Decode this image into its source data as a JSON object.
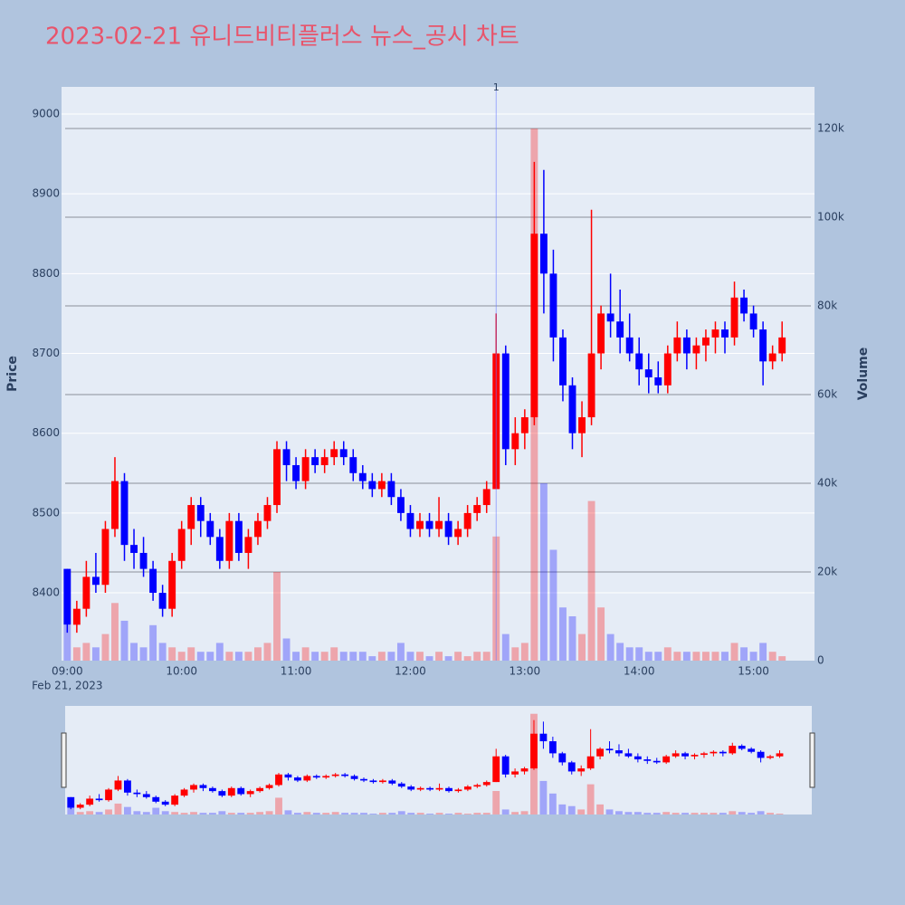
{
  "chart_data": {
    "type": "candlestick",
    "title": "2023-02-21 유니드비티플러스 뉴스_공시 차트",
    "y_label": "Price",
    "y2_label": "Volume",
    "increasing_color": "#ff0000",
    "decreasing_color": "#0000ff",
    "x": [
      "2023-02-21 09:00",
      "2023-02-21 09:05",
      "2023-02-21 09:10",
      "2023-02-21 09:15",
      "2023-02-21 09:20",
      "2023-02-21 09:25",
      "2023-02-21 09:30",
      "2023-02-21 09:35",
      "2023-02-21 09:40",
      "2023-02-21 09:45",
      "2023-02-21 09:50",
      "2023-02-21 09:55",
      "2023-02-21 10:00",
      "2023-02-21 10:05",
      "2023-02-21 10:10",
      "2023-02-21 10:15",
      "2023-02-21 10:20",
      "2023-02-21 10:25",
      "2023-02-21 10:30",
      "2023-02-21 10:35",
      "2023-02-21 10:40",
      "2023-02-21 10:45",
      "2023-02-21 10:50",
      "2023-02-21 10:55",
      "2023-02-21 11:00",
      "2023-02-21 11:05",
      "2023-02-21 11:10",
      "2023-02-21 11:15",
      "2023-02-21 11:20",
      "2023-02-21 11:25",
      "2023-02-21 11:30",
      "2023-02-21 11:35",
      "2023-02-21 11:40",
      "2023-02-21 11:45",
      "2023-02-21 11:50",
      "2023-02-21 11:55",
      "2023-02-21 12:00",
      "2023-02-21 12:05",
      "2023-02-21 12:10",
      "2023-02-21 12:15",
      "2023-02-21 12:20",
      "2023-02-21 12:25",
      "2023-02-21 12:30",
      "2023-02-21 12:35",
      "2023-02-21 12:40",
      "2023-02-21 12:45",
      "2023-02-21 12:50",
      "2023-02-21 12:55",
      "2023-02-21 13:00",
      "2023-02-21 13:05",
      "2023-02-21 13:10",
      "2023-02-21 13:15",
      "2023-02-21 13:20",
      "2023-02-21 13:25",
      "2023-02-21 13:30",
      "2023-02-21 13:35",
      "2023-02-21 13:40",
      "2023-02-21 13:45",
      "2023-02-21 13:50",
      "2023-02-21 13:55",
      "2023-02-21 14:00",
      "2023-02-21 14:05",
      "2023-02-21 14:10",
      "2023-02-21 14:15",
      "2023-02-21 14:20",
      "2023-02-21 14:25",
      "2023-02-21 14:30",
      "2023-02-21 14:35",
      "2023-02-21 14:40",
      "2023-02-21 14:45",
      "2023-02-21 14:50",
      "2023-02-21 14:55",
      "2023-02-21 15:00",
      "2023-02-21 15:05",
      "2023-02-21 15:10",
      "2023-02-21 15:15"
    ],
    "open": [
      8430,
      8360,
      8380,
      8420,
      8410,
      8480,
      8540,
      8460,
      8450,
      8430,
      8400,
      8380,
      8440,
      8480,
      8510,
      8490,
      8470,
      8440,
      8490,
      8450,
      8470,
      8490,
      8510,
      8580,
      8560,
      8540,
      8570,
      8560,
      8570,
      8580,
      8570,
      8550,
      8540,
      8530,
      8540,
      8520,
      8500,
      8480,
      8490,
      8480,
      8490,
      8470,
      8480,
      8500,
      8510,
      8530,
      8700,
      8580,
      8600,
      8620,
      8850,
      8800,
      8720,
      8660,
      8600,
      8620,
      8700,
      8750,
      8740,
      8720,
      8700,
      8680,
      8670,
      8660,
      8700,
      8720,
      8700,
      8710,
      8720,
      8730,
      8720,
      8770,
      8750,
      8730,
      8690,
      8700
    ],
    "high": [
      8430,
      8390,
      8440,
      8450,
      8490,
      8570,
      8550,
      8480,
      8470,
      8440,
      8410,
      8450,
      8490,
      8520,
      8520,
      8500,
      8480,
      8500,
      8500,
      8480,
      8500,
      8520,
      8590,
      8590,
      8570,
      8580,
      8580,
      8580,
      8590,
      8590,
      8580,
      8560,
      8550,
      8550,
      8550,
      8530,
      8510,
      8500,
      8500,
      8520,
      8500,
      8490,
      8510,
      8520,
      8540,
      8750,
      8710,
      8620,
      8630,
      8940,
      8930,
      8830,
      8730,
      8670,
      8640,
      8880,
      8760,
      8800,
      8780,
      8750,
      8720,
      8700,
      8690,
      8710,
      8740,
      8730,
      8720,
      8730,
      8740,
      8740,
      8790,
      8780,
      8760,
      8740,
      8710,
      8740
    ],
    "low": [
      8350,
      8350,
      8370,
      8400,
      8400,
      8470,
      8440,
      8430,
      8420,
      8390,
      8370,
      8370,
      8430,
      8460,
      8470,
      8460,
      8430,
      8430,
      8440,
      8430,
      8460,
      8480,
      8500,
      8540,
      8530,
      8530,
      8550,
      8550,
      8560,
      8560,
      8540,
      8530,
      8520,
      8520,
      8510,
      8490,
      8470,
      8470,
      8470,
      8470,
      8460,
      8460,
      8470,
      8490,
      8500,
      8530,
      8560,
      8560,
      8580,
      8610,
      8750,
      8690,
      8640,
      8580,
      8570,
      8610,
      8680,
      8720,
      8700,
      8690,
      8660,
      8650,
      8650,
      8650,
      8690,
      8680,
      8680,
      8690,
      8700,
      8700,
      8710,
      8740,
      8720,
      8660,
      8680,
      8690
    ],
    "close": [
      8360,
      8380,
      8420,
      8410,
      8480,
      8540,
      8460,
      8450,
      8430,
      8400,
      8380,
      8440,
      8480,
      8510,
      8490,
      8470,
      8440,
      8490,
      8450,
      8470,
      8490,
      8510,
      8580,
      8560,
      8540,
      8570,
      8560,
      8570,
      8580,
      8570,
      8550,
      8540,
      8530,
      8540,
      8520,
      8500,
      8480,
      8490,
      8480,
      8490,
      8470,
      8480,
      8500,
      8510,
      8530,
      8700,
      8580,
      8600,
      8620,
      8850,
      8800,
      8720,
      8660,
      8600,
      8620,
      8700,
      8750,
      8740,
      8720,
      8700,
      8680,
      8670,
      8660,
      8700,
      8720,
      8700,
      8710,
      8720,
      8730,
      8720,
      8770,
      8750,
      8730,
      8690,
      8700,
      8720
    ],
    "volume": [
      8000,
      3000,
      4000,
      3000,
      6000,
      13000,
      9000,
      4000,
      3000,
      8000,
      4000,
      3000,
      2000,
      3000,
      2000,
      2000,
      4000,
      2000,
      2000,
      2000,
      3000,
      4000,
      20000,
      5000,
      2000,
      3000,
      2000,
      2000,
      3000,
      2000,
      2000,
      2000,
      1000,
      2000,
      2000,
      4000,
      2000,
      2000,
      1000,
      2000,
      1000,
      2000,
      1000,
      2000,
      2000,
      28000,
      6000,
      3000,
      4000,
      120000,
      40000,
      25000,
      12000,
      10000,
      6000,
      36000,
      12000,
      6000,
      4000,
      3000,
      3000,
      2000,
      2000,
      3000,
      2000,
      2000,
      2000,
      2000,
      2000,
      2000,
      4000,
      3000,
      2000,
      4000,
      2000,
      1000
    ],
    "xlim": [
      "2023-02-21 08:57",
      "2023-02-21 15:32"
    ],
    "xticks": [
      {
        "value": "2023-02-21 09:00",
        "label": "09:00"
      },
      {
        "value": "2023-02-21 10:00",
        "label": "10:00"
      },
      {
        "value": "2023-02-21 11:00",
        "label": "11:00"
      },
      {
        "value": "2023-02-21 12:00",
        "label": "12:00"
      },
      {
        "value": "2023-02-21 13:00",
        "label": "13:00"
      },
      {
        "value": "2023-02-21 14:00",
        "label": "14:00"
      },
      {
        "value": "2023-02-21 15:00",
        "label": "15:00"
      }
    ],
    "x_date_label": "Feb 21, 2023",
    "ylim": [
      8315,
      9034
    ],
    "yticks": [
      8400,
      8500,
      8600,
      8700,
      8800,
      8900,
      9000
    ],
    "y2lim": [
      0,
      129400
    ],
    "y2ticks": [
      0,
      {
        "value": 20000,
        "label": "20k"
      },
      {
        "value": 40000,
        "label": "40k"
      },
      {
        "value": 60000,
        "label": "60k"
      },
      {
        "value": 80000,
        "label": "80k"
      },
      {
        "value": 100000,
        "label": "100k"
      },
      {
        "value": 120000,
        "label": "120k"
      }
    ],
    "annotation": {
      "x": "2023-02-21 12:45",
      "text": "1"
    }
  }
}
